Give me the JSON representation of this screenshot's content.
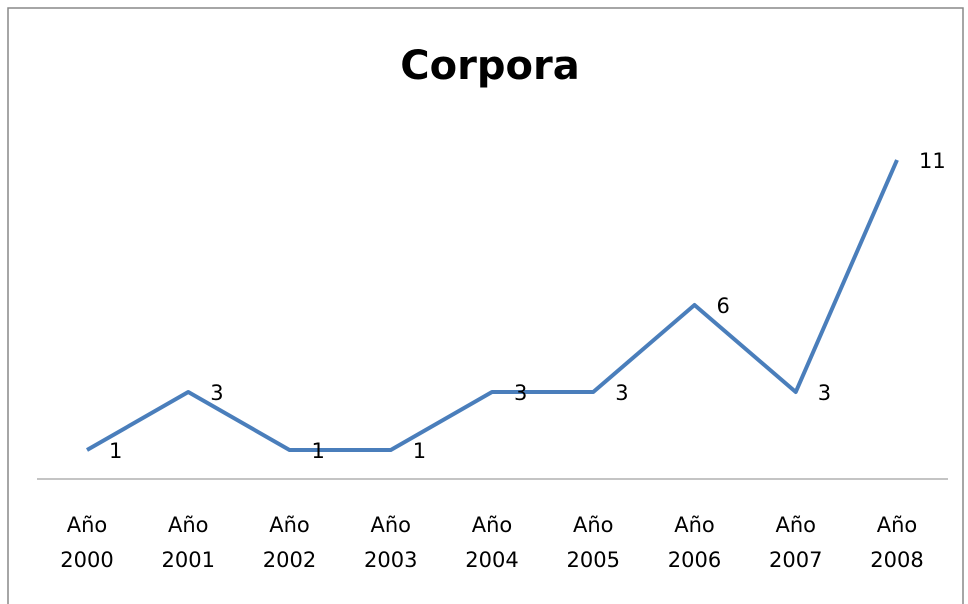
{
  "chart_data": {
    "type": "line",
    "title": "Corpora",
    "categories": [
      "Año 2000",
      "Año 2001",
      "Año 2002",
      "Año 2003",
      "Año 2004",
      "Año 2005",
      "Año 2006",
      "Año 2007",
      "Año 2008"
    ],
    "series": [
      {
        "name": "Corpora",
        "color": "#4a7ebb",
        "values": [
          1,
          3,
          1,
          1,
          3,
          3,
          6,
          3,
          11
        ]
      }
    ]
  }
}
